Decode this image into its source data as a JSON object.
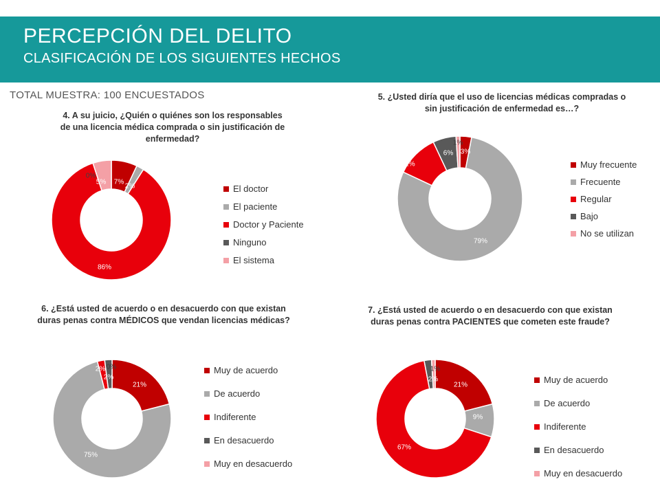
{
  "header": {
    "title": "PERCEPCIÓN DEL DELITO",
    "subtitle": "CLASIFICACIÓN DE LOS SIGUIENTES HECHOS"
  },
  "sample_note": "TOTAL MUESTRA: 100 ENCUESTADOS",
  "colors": {
    "header_band": "#16999a",
    "dark_red": "#c00000",
    "grey": "#aaaaaa",
    "red": "#e8000b",
    "dark_grey": "#595959",
    "pink": "#f4a0a6"
  },
  "chart_data": [
    {
      "type": "pie",
      "variant": "donut",
      "title": "4. A su juicio, ¿Quién o quiénes son los responsables de una licencia médica comprada o sin justificación de enfermedad?",
      "categories": [
        "El doctor",
        "El paciente",
        "Doctor y Paciente",
        "Ninguno",
        "El sistema"
      ],
      "values": [
        7,
        2,
        86,
        0,
        5
      ],
      "labels": [
        "7%",
        "2%",
        "86%",
        "0%",
        "5%"
      ],
      "colors": [
        "#c00000",
        "#aaaaaa",
        "#e8000b",
        "#595959",
        "#f4a0a6"
      ],
      "legend": "right"
    },
    {
      "type": "pie",
      "variant": "donut",
      "title": "5. ¿Usted diría que el uso de licencias médicas compradas o sin justificación de enfermedad es…?",
      "categories": [
        "Muy frecuente",
        "Frecuente",
        "Regular",
        "Bajo",
        "No se utilizan"
      ],
      "values": [
        3,
        79,
        11,
        6,
        1
      ],
      "labels": [
        "3%",
        "79%",
        "11%",
        "6%",
        "1%"
      ],
      "colors": [
        "#c00000",
        "#aaaaaa",
        "#e8000b",
        "#595959",
        "#f4a0a6"
      ],
      "legend": "right"
    },
    {
      "type": "pie",
      "variant": "donut",
      "title": "6. ¿Está usted de acuerdo o en desacuerdo con que existan duras penas contra MÉDICOS que vendan licencias médicas?",
      "categories": [
        "Muy de acuerdo",
        "De acuerdo",
        "Indiferente",
        "En desacuerdo",
        "Muy en desacuerdo"
      ],
      "values": [
        21,
        75,
        2,
        2,
        0
      ],
      "labels": [
        "21%",
        "75%",
        "2%",
        "2%",
        "0%"
      ],
      "colors": [
        "#c00000",
        "#aaaaaa",
        "#e8000b",
        "#595959",
        "#f4a0a6"
      ],
      "legend": "right"
    },
    {
      "type": "pie",
      "variant": "donut",
      "title": "7. ¿Está usted de acuerdo o en desacuerdo con que existan duras penas contra PACIENTES que cometen este fraude?",
      "categories": [
        "Muy de acuerdo",
        "De acuerdo",
        "Indiferente",
        "En desacuerdo",
        "Muy en desacuerdo"
      ],
      "values": [
        21,
        9,
        67,
        2,
        1
      ],
      "labels": [
        "21%",
        "9%",
        "67%",
        "2%",
        "1%"
      ],
      "colors": [
        "#c00000",
        "#aaaaaa",
        "#e8000b",
        "#595959",
        "#f4a0a6"
      ],
      "legend": "right"
    }
  ]
}
